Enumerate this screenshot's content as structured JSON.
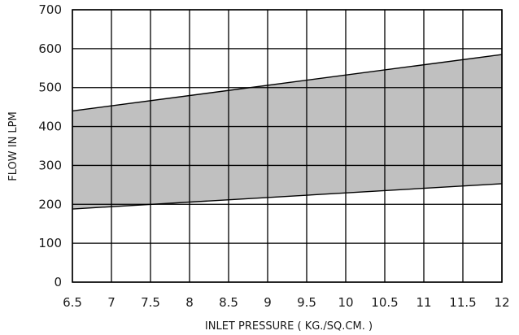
{
  "chart_data": {
    "type": "area",
    "title": "",
    "xlabel": "INLET PRESSURE ( KG./SQ.CM. )",
    "ylabel": "FLOW IN LPM",
    "xlim": [
      6.5,
      12
    ],
    "ylim": [
      0,
      700
    ],
    "x_ticks": [
      6.5,
      7,
      7.5,
      8,
      8.5,
      9,
      9.5,
      10,
      10.5,
      11,
      11.5,
      12
    ],
    "x_tick_labels": [
      "6.5",
      "7",
      "7.5",
      "8",
      "8.5",
      "9",
      "9.5",
      "10",
      "10.5",
      "11",
      "11.5",
      "12"
    ],
    "y_ticks": [
      0,
      100,
      200,
      300,
      400,
      500,
      600,
      700
    ],
    "y_tick_labels": [
      "0",
      "100",
      "200",
      "300",
      "400",
      "500",
      "600",
      "700"
    ],
    "grid": true,
    "band": {
      "x": [
        6.5,
        12
      ],
      "lower": [
        188,
        253
      ],
      "upper": [
        440,
        585
      ]
    },
    "colors": {
      "band_fill": "#c0c0c0",
      "grid": "#000000",
      "lines": "#000000"
    }
  }
}
